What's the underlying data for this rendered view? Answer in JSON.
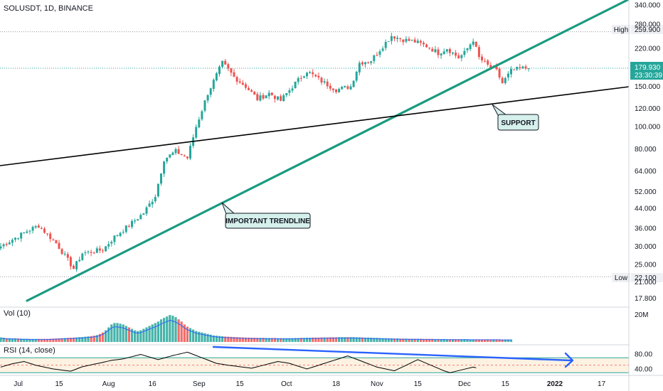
{
  "chart_data": {
    "type": "candlestick",
    "title": "SOLUSDT, 1D, BINANCE",
    "y_scale": "log",
    "ylim": [
      17.0,
      345.0
    ],
    "start_date": "2021-06-25",
    "y_ticks": [
      {
        "label": "340.000",
        "v": 340
      },
      {
        "label": "280.000",
        "v": 280
      },
      {
        "label": "220.000",
        "v": 220
      },
      {
        "label": "150.000",
        "v": 150
      },
      {
        "label": "120.000",
        "v": 120
      },
      {
        "label": "100.000",
        "v": 100
      },
      {
        "label": "80.000",
        "v": 80
      },
      {
        "label": "64.000",
        "v": 64
      },
      {
        "label": "52.000",
        "v": 52
      },
      {
        "label": "44.000",
        "v": 44
      },
      {
        "label": "36.000",
        "v": 36
      },
      {
        "label": "30.000",
        "v": 30
      },
      {
        "label": "25.000",
        "v": 25
      },
      {
        "label": "21.000",
        "v": 21
      },
      {
        "label": "17.800",
        "v": 17.8
      }
    ],
    "x_ticks": [
      {
        "label": "Jul",
        "date": "2021-07-01"
      },
      {
        "label": "15",
        "date": "2021-07-15"
      },
      {
        "label": "Aug",
        "date": "2021-08-01"
      },
      {
        "label": "16",
        "date": "2021-08-16"
      },
      {
        "label": "Sep",
        "date": "2021-09-01"
      },
      {
        "label": "15",
        "date": "2021-09-15"
      },
      {
        "label": "Oct",
        "date": "2021-10-01"
      },
      {
        "label": "18",
        "date": "2021-10-18"
      },
      {
        "label": "Nov",
        "date": "2021-11-01"
      },
      {
        "label": "15",
        "date": "2021-11-15"
      },
      {
        "label": "Dec",
        "date": "2021-12-01"
      },
      {
        "label": "15",
        "date": "2021-12-15"
      },
      {
        "label": "2022",
        "date": "2022-01-01"
      },
      {
        "label": "17",
        "date": "2022-01-17"
      }
    ],
    "anchors": [
      {
        "date": "2021-06-25",
        "v": 30
      },
      {
        "date": "2021-07-04",
        "v": 35
      },
      {
        "date": "2021-07-08",
        "v": 37
      },
      {
        "date": "2021-07-14",
        "v": 31
      },
      {
        "date": "2021-07-20",
        "v": 24
      },
      {
        "date": "2021-07-23",
        "v": 28
      },
      {
        "date": "2021-07-30",
        "v": 29
      },
      {
        "date": "2021-08-03",
        "v": 33
      },
      {
        "date": "2021-08-09",
        "v": 38
      },
      {
        "date": "2021-08-13",
        "v": 42
      },
      {
        "date": "2021-08-17",
        "v": 50
      },
      {
        "date": "2021-08-20",
        "v": 72
      },
      {
        "date": "2021-08-24",
        "v": 78
      },
      {
        "date": "2021-08-28",
        "v": 73
      },
      {
        "date": "2021-08-31",
        "v": 100
      },
      {
        "date": "2021-09-04",
        "v": 140
      },
      {
        "date": "2021-09-09",
        "v": 190
      },
      {
        "date": "2021-09-13",
        "v": 165
      },
      {
        "date": "2021-09-17",
        "v": 150
      },
      {
        "date": "2021-09-21",
        "v": 132
      },
      {
        "date": "2021-09-25",
        "v": 140
      },
      {
        "date": "2021-09-29",
        "v": 130
      },
      {
        "date": "2021-10-04",
        "v": 155
      },
      {
        "date": "2021-10-08",
        "v": 175
      },
      {
        "date": "2021-10-13",
        "v": 158
      },
      {
        "date": "2021-10-18",
        "v": 145
      },
      {
        "date": "2021-10-23",
        "v": 150
      },
      {
        "date": "2021-10-26",
        "v": 190
      },
      {
        "date": "2021-10-30",
        "v": 195
      },
      {
        "date": "2021-11-03",
        "v": 225
      },
      {
        "date": "2021-11-06",
        "v": 250
      },
      {
        "date": "2021-11-10",
        "v": 240
      },
      {
        "date": "2021-11-14",
        "v": 235
      },
      {
        "date": "2021-11-18",
        "v": 225
      },
      {
        "date": "2021-11-22",
        "v": 210
      },
      {
        "date": "2021-11-25",
        "v": 220
      },
      {
        "date": "2021-11-29",
        "v": 200
      },
      {
        "date": "2021-12-01",
        "v": 210
      },
      {
        "date": "2021-12-04",
        "v": 240
      },
      {
        "date": "2021-12-06",
        "v": 200
      },
      {
        "date": "2021-12-09",
        "v": 185
      },
      {
        "date": "2021-12-12",
        "v": 175
      },
      {
        "date": "2021-12-14",
        "v": 155
      },
      {
        "date": "2021-12-17",
        "v": 175
      },
      {
        "date": "2021-12-20",
        "v": 180
      },
      {
        "date": "2021-12-23",
        "v": 180
      }
    ],
    "last_price": {
      "label": "179.930",
      "countdown": "23:30:39",
      "v": 179.93
    },
    "high": {
      "label": "High",
      "value": "259.900",
      "v": 259.9
    },
    "low": {
      "label": "Low",
      "value": "22.100",
      "v": 22.1
    },
    "volume": {
      "label": "Vol (10)",
      "tick_label": "20M",
      "tick_value": 20,
      "values": [
        3.1,
        2.9,
        2.6,
        2.6,
        2.5,
        2.5,
        2.4,
        2.3,
        2.2,
        2.2,
        2.1,
        2.1,
        2.1,
        2.1,
        2.1,
        2.1,
        2.1,
        2.2,
        2.3,
        2.4,
        2.5,
        2.6,
        2.7,
        2.8,
        2.9,
        3.0,
        3.1,
        3.3,
        3.4,
        3.6,
        3.8,
        4.0,
        4.3,
        4.7,
        5.5,
        6.5,
        8.0,
        10.0,
        12.0,
        13.0,
        13.0,
        12.5,
        12.0,
        11.0,
        10.0,
        9.0,
        8.0,
        7.5,
        8.0,
        9.0,
        10.0,
        11.0,
        12.0,
        13.0,
        14.0,
        15.5,
        16.5,
        17.5,
        18.5,
        18.0,
        17.0,
        15.5,
        14.0,
        12.0,
        10.5,
        9.5,
        8.5,
        7.5,
        7.0,
        6.5,
        6.0,
        5.5,
        5.0,
        4.5,
        4.3,
        4.1,
        3.9,
        3.7,
        3.6,
        3.5,
        3.4,
        3.3,
        3.2,
        3.1,
        3.0,
        3.0,
        2.9,
        2.9,
        2.8,
        2.8,
        2.8,
        2.7,
        2.7,
        2.7,
        2.7,
        2.6,
        2.6,
        2.6,
        2.6,
        2.6,
        2.6,
        2.7,
        2.7,
        2.8,
        2.8,
        2.9,
        2.9,
        3.0,
        3.0,
        3.0,
        3.1,
        3.1,
        3.1,
        3.2,
        3.2,
        3.2,
        3.3,
        3.3,
        3.3,
        3.3,
        3.3,
        3.3,
        3.2,
        3.2,
        3.1,
        3.0,
        3.0,
        2.9,
        2.8,
        2.8,
        2.7,
        2.6,
        2.6,
        2.5,
        2.5,
        2.4,
        2.4,
        2.3,
        2.3,
        2.3,
        2.2,
        2.2,
        2.2,
        2.2,
        2.2,
        2.1,
        2.1,
        2.1,
        2.1,
        2.0,
        2.0,
        2.0,
        2.0,
        1.9,
        1.9,
        1.9,
        1.9,
        1.9,
        1.9,
        1.9,
        1.9,
        1.8,
        1.8,
        1.8,
        1.8,
        1.8,
        1.8,
        1.8,
        1.8,
        1.8,
        1.8,
        1.8,
        1.7,
        1.7,
        1.7,
        1.7
      ]
    },
    "rsi": {
      "label": "RSI (14, close)",
      "ticks": [
        {
          "label": "80.00",
          "v": 80
        },
        {
          "label": "40.00",
          "v": 40
        }
      ],
      "band": [
        30,
        70
      ],
      "values": [
        45.0,
        47.3,
        49.5,
        51.8,
        54.0,
        55.5,
        57.0,
        58.5,
        60.0,
        57.5,
        55.0,
        52.5,
        50.0,
        48.3,
        46.7,
        45.0,
        43.3,
        41.7,
        40.0,
        39.0,
        38.0,
        37.0,
        36.0,
        35.0,
        34.0,
        37.0,
        40.0,
        43.0,
        46.0,
        47.7,
        49.3,
        51.0,
        52.7,
        54.3,
        56.0,
        57.8,
        59.5,
        61.3,
        63.0,
        64.0,
        65.0,
        66.0,
        67.0,
        69.0,
        71.0,
        73.0,
        75.0,
        77.0,
        79.0,
        76.7,
        74.3,
        72.0,
        69.7,
        67.3,
        65.0,
        67.2,
        69.4,
        71.6,
        73.8,
        76.0,
        77.8,
        79.6,
        81.4,
        83.2,
        85.0,
        82.0,
        79.0,
        76.0,
        73.0,
        70.0,
        67.0,
        64.0,
        61.0,
        58.0,
        55.0,
        53.8,
        52.5,
        51.3,
        50.0,
        49.0,
        48.0,
        47.0,
        46.0,
        45.0,
        44.0,
        43.0,
        42.0,
        44.0,
        46.0,
        48.0,
        50.0,
        52.0,
        54.0,
        56.0,
        58.0,
        60.0,
        58.8,
        57.5,
        56.3,
        55.0,
        52.5,
        50.0,
        47.5,
        45.0,
        42.5,
        40.0,
        42.5,
        45.0,
        47.5,
        50.0,
        52.5,
        55.0,
        57.5,
        60.0,
        62.5,
        65.0,
        67.5,
        70.0,
        72.5,
        75.0,
        72.0,
        69.0,
        66.0,
        63.0,
        60.0,
        57.0,
        54.0,
        51.0,
        48.0,
        45.0,
        43.3,
        41.7,
        40.0,
        38.3,
        36.7,
        35.0,
        38.8,
        42.5,
        46.3,
        50.0,
        53.8,
        57.5,
        61.3,
        65.0,
        61.7,
        58.3,
        55.0,
        51.7,
        48.3,
        45.0,
        41.7,
        38.3,
        35.0,
        32.5,
        30.0,
        31.9,
        33.8,
        35.6,
        37.5,
        39.4,
        41.3,
        43.1,
        45.0,
        43.0
      ]
    },
    "annotations": [
      {
        "text": "IMPORTANT TRENDLINE",
        "type": "callout"
      },
      {
        "text": "SUPPORT",
        "type": "callout"
      }
    ]
  },
  "colors": {
    "up": "#26a69a",
    "down": "#ef5350",
    "trendline": "#1a9a80",
    "support": "#000000",
    "rsi_arrow": "#2962ff",
    "rsi_band_fill": "#fdf2e2",
    "rsi_line": "#000000",
    "price_label_bg": "#26a69a",
    "callout_bg": "#d6f0ec",
    "callout_border": "#131722"
  }
}
